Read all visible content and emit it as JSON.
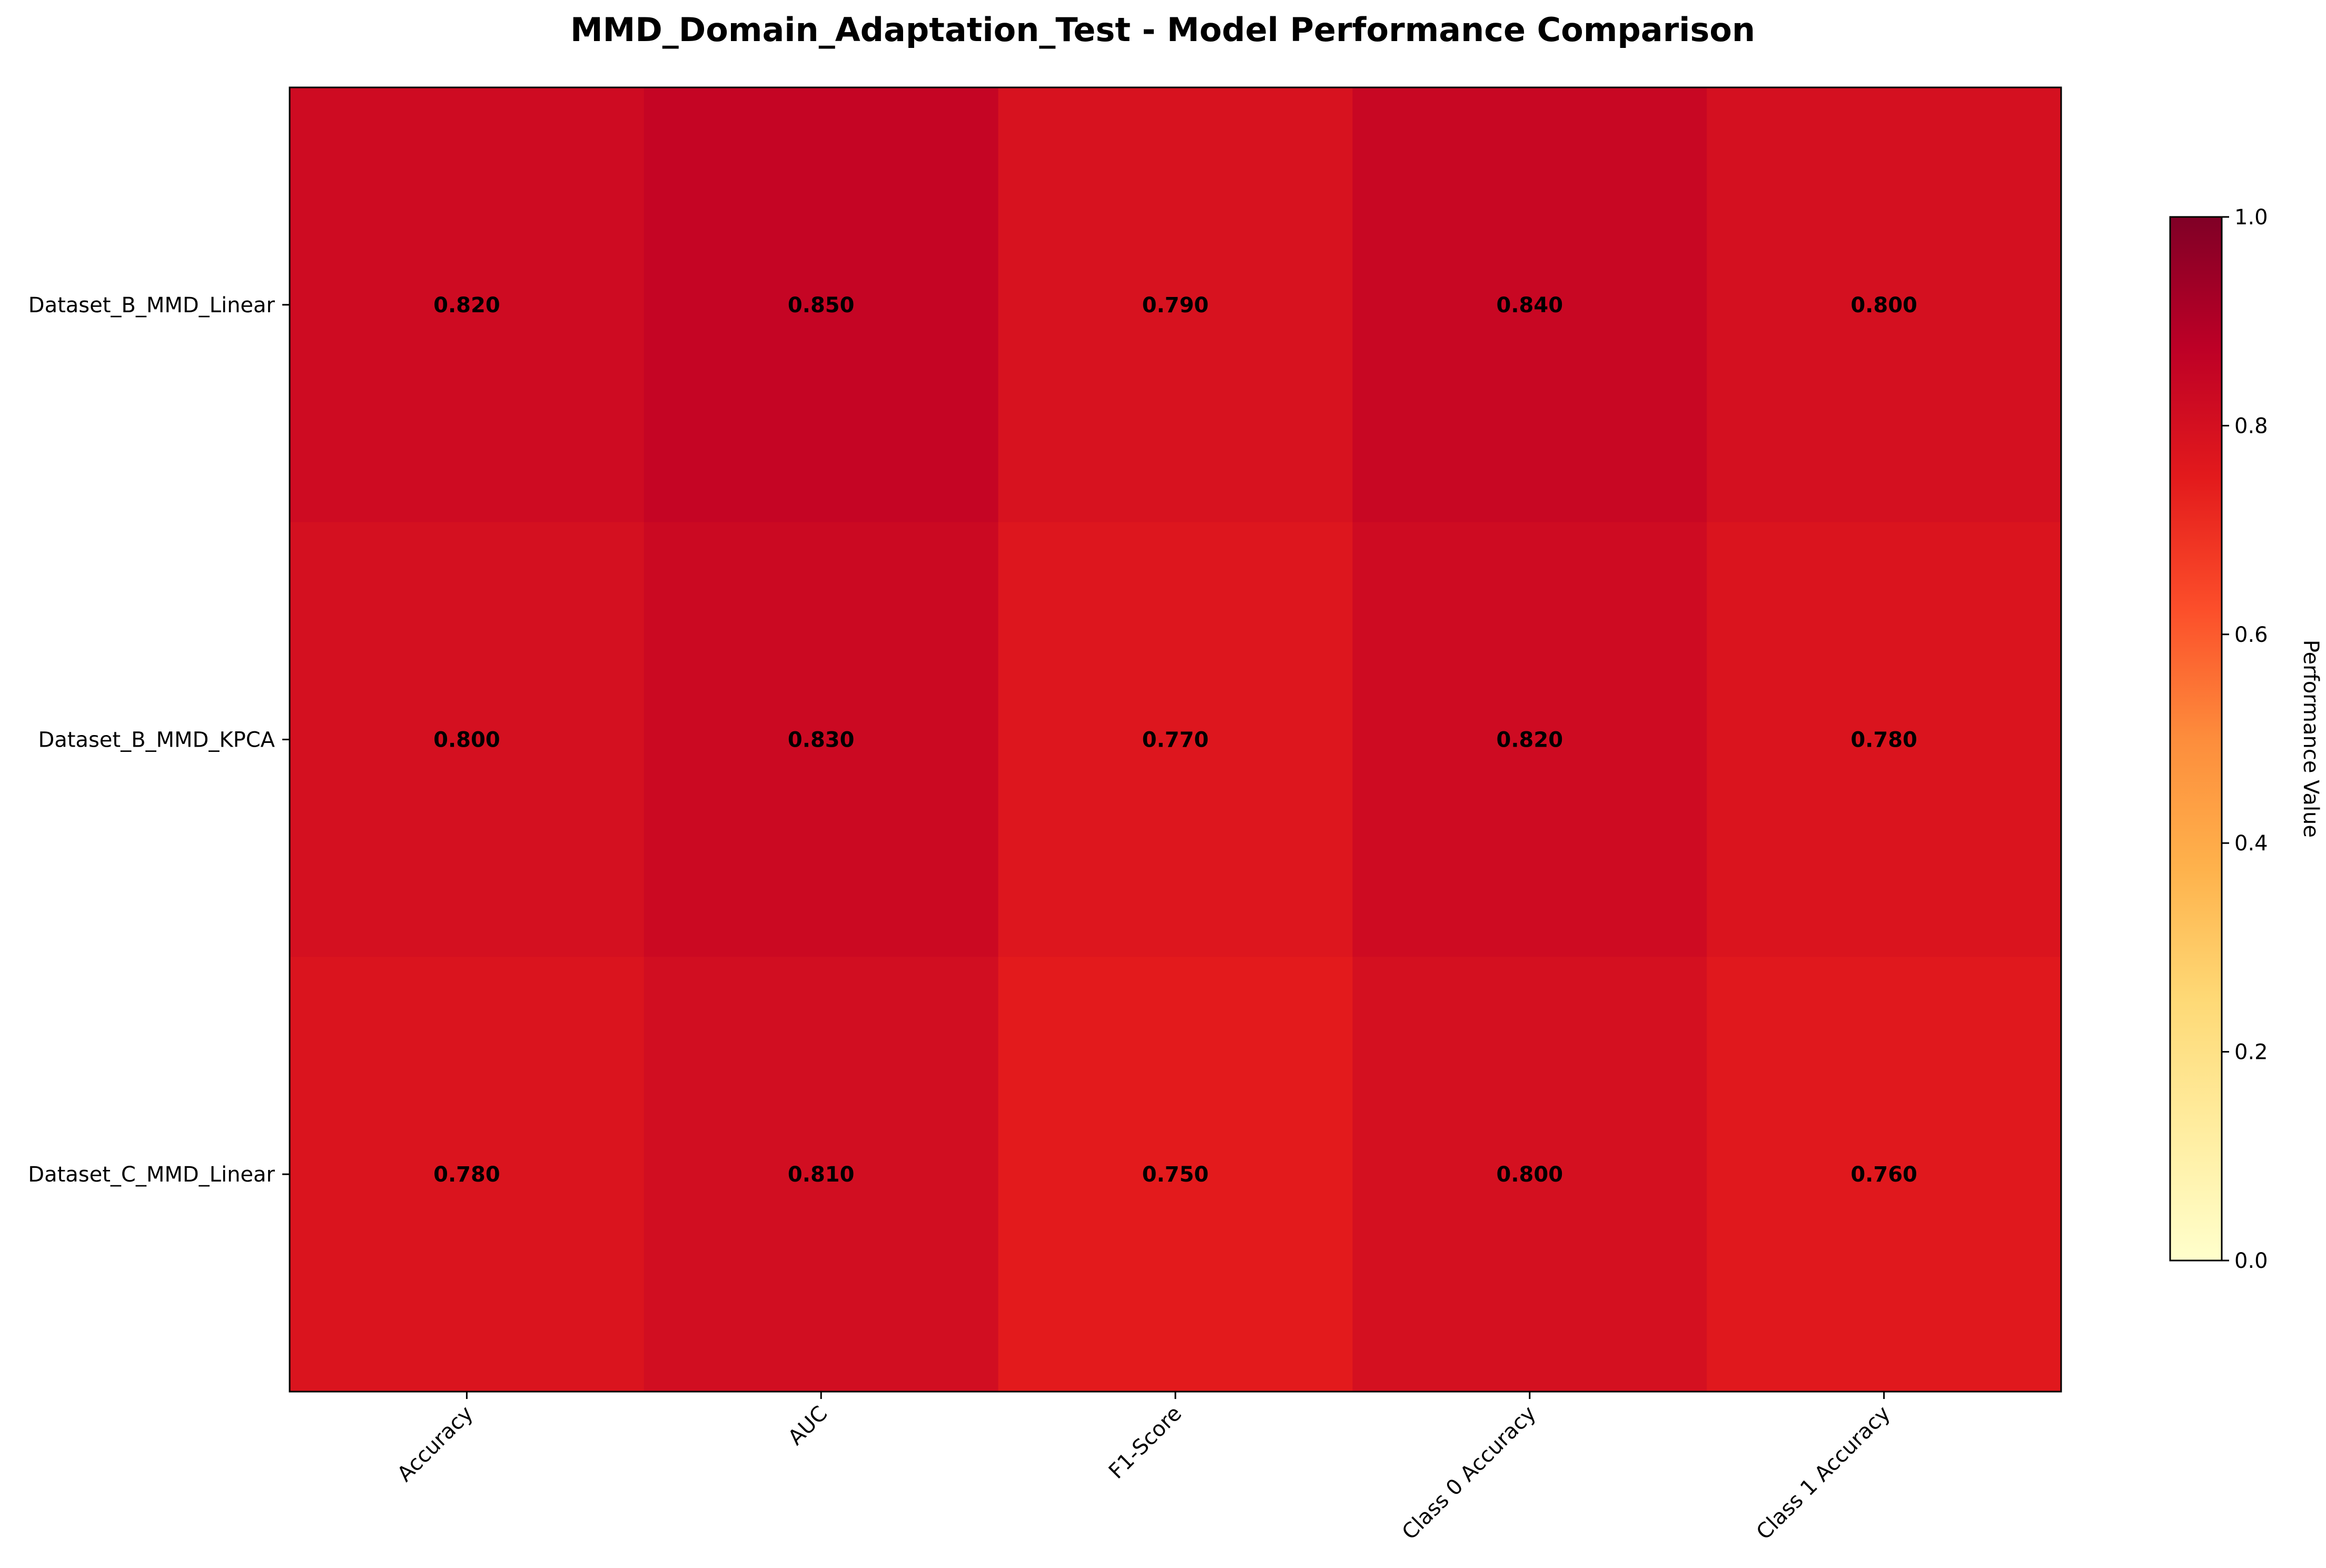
{
  "chart_data": {
    "type": "heatmap",
    "title": "MMD_Domain_Adaptation_Test - Model Performance Comparison",
    "columns": [
      "Accuracy",
      "AUC",
      "F1-Score",
      "Class 0 Accuracy",
      "Class 1 Accuracy"
    ],
    "rows": [
      "Dataset_B_MMD_Linear",
      "Dataset_B_MMD_KPCA",
      "Dataset_C_MMD_Linear"
    ],
    "values": [
      [
        0.82,
        0.85,
        0.79,
        0.84,
        0.8
      ],
      [
        0.8,
        0.83,
        0.77,
        0.82,
        0.78
      ],
      [
        0.78,
        0.81,
        0.75,
        0.8,
        0.76
      ]
    ],
    "value_labels": [
      [
        "0.820",
        "0.850",
        "0.790",
        "0.840",
        "0.800"
      ],
      [
        "0.800",
        "0.830",
        "0.770",
        "0.820",
        "0.780"
      ],
      [
        "0.780",
        "0.810",
        "0.750",
        "0.800",
        "0.760"
      ]
    ],
    "colormap": "YlOrRd",
    "vmin": 0,
    "vmax": 1,
    "colorbar": {
      "label": "Performance Value",
      "ticks": [
        "0.0",
        "0.2",
        "0.4",
        "0.6",
        "0.8",
        "1.0"
      ]
    },
    "xtick_rotation_deg": 45
  }
}
